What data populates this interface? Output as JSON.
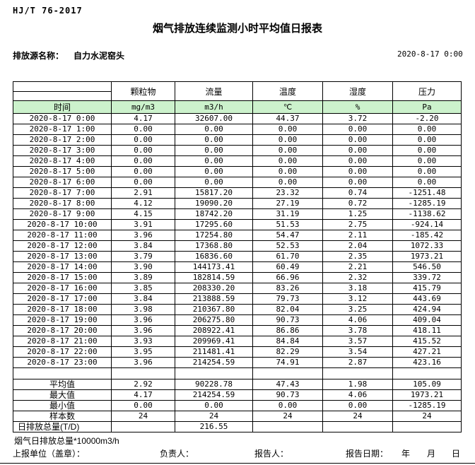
{
  "meta": {
    "standard": "HJ/T 76-2017",
    "title": "烟气排放连续监测小时平均值日报表",
    "source_label": "排放源名称：",
    "source_name": "自力水泥窑头",
    "report_datetime": "2020-8-17 0:00"
  },
  "table": {
    "time_header": "时间",
    "columns": [
      "颗粒物",
      "流量",
      "温度",
      "湿度",
      "压力"
    ],
    "units": [
      "mg/m3",
      "m3/h",
      "℃",
      "%",
      "Pa"
    ],
    "rows": [
      {
        "time": "2020-8-17 0:00",
        "values": [
          "4.17",
          "32607.00",
          "44.37",
          "3.72",
          "-2.20"
        ]
      },
      {
        "time": "2020-8-17 1:00",
        "values": [
          "0.00",
          "0.00",
          "0.00",
          "0.00",
          "0.00"
        ]
      },
      {
        "time": "2020-8-17 2:00",
        "values": [
          "0.00",
          "0.00",
          "0.00",
          "0.00",
          "0.00"
        ]
      },
      {
        "time": "2020-8-17 3:00",
        "values": [
          "0.00",
          "0.00",
          "0.00",
          "0.00",
          "0.00"
        ]
      },
      {
        "time": "2020-8-17 4:00",
        "values": [
          "0.00",
          "0.00",
          "0.00",
          "0.00",
          "0.00"
        ]
      },
      {
        "time": "2020-8-17 5:00",
        "values": [
          "0.00",
          "0.00",
          "0.00",
          "0.00",
          "0.00"
        ]
      },
      {
        "time": "2020-8-17 6:00",
        "values": [
          "0.00",
          "0.00",
          "0.00",
          "0.00",
          "0.00"
        ]
      },
      {
        "time": "2020-8-17 7:00",
        "values": [
          "2.91",
          "15817.20",
          "23.32",
          "0.74",
          "-1251.48"
        ]
      },
      {
        "time": "2020-8-17 8:00",
        "values": [
          "4.12",
          "19090.20",
          "27.19",
          "0.72",
          "-1285.19"
        ]
      },
      {
        "time": "2020-8-17 9:00",
        "values": [
          "4.15",
          "18742.20",
          "31.19",
          "1.25",
          "-1138.62"
        ]
      },
      {
        "time": "2020-8-17 10:00",
        "values": [
          "3.91",
          "17295.60",
          "51.53",
          "2.75",
          "-924.14"
        ]
      },
      {
        "time": "2020-8-17 11:00",
        "values": [
          "3.96",
          "17254.80",
          "54.47",
          "2.11",
          "-185.42"
        ]
      },
      {
        "time": "2020-8-17 12:00",
        "values": [
          "3.84",
          "17368.80",
          "52.53",
          "2.04",
          "1072.33"
        ]
      },
      {
        "time": "2020-8-17 13:00",
        "values": [
          "3.79",
          "16836.60",
          "61.70",
          "2.35",
          "1973.21"
        ]
      },
      {
        "time": "2020-8-17 14:00",
        "values": [
          "3.90",
          "144173.41",
          "60.49",
          "2.21",
          "546.50"
        ]
      },
      {
        "time": "2020-8-17 15:00",
        "values": [
          "3.89",
          "182814.59",
          "66.96",
          "2.32",
          "339.72"
        ]
      },
      {
        "time": "2020-8-17 16:00",
        "values": [
          "3.85",
          "208330.20",
          "83.26",
          "3.18",
          "415.79"
        ]
      },
      {
        "time": "2020-8-17 17:00",
        "values": [
          "3.84",
          "213888.59",
          "79.73",
          "3.12",
          "443.69"
        ]
      },
      {
        "time": "2020-8-17 18:00",
        "values": [
          "3.98",
          "210367.80",
          "82.04",
          "3.25",
          "424.94"
        ]
      },
      {
        "time": "2020-8-17 19:00",
        "values": [
          "3.96",
          "206275.80",
          "90.73",
          "4.06",
          "409.04"
        ]
      },
      {
        "time": "2020-8-17 20:00",
        "values": [
          "3.96",
          "208922.41",
          "86.86",
          "3.78",
          "418.11"
        ]
      },
      {
        "time": "2020-8-17 21:00",
        "values": [
          "3.93",
          "209969.41",
          "84.84",
          "3.57",
          "415.52"
        ]
      },
      {
        "time": "2020-8-17 22:00",
        "values": [
          "3.95",
          "211481.41",
          "82.29",
          "3.54",
          "427.21"
        ]
      },
      {
        "time": "2020-8-17 23:00",
        "values": [
          "3.96",
          "214254.59",
          "74.91",
          "2.87",
          "423.16"
        ]
      }
    ],
    "summary": [
      {
        "label": "平均值",
        "values": [
          "2.92",
          "90228.78",
          "47.43",
          "1.98",
          "105.09"
        ]
      },
      {
        "label": "最大值",
        "values": [
          "4.17",
          "214254.59",
          "90.73",
          "4.06",
          "1973.21"
        ]
      },
      {
        "label": "最小值",
        "values": [
          "0.00",
          "0.00",
          "0.00",
          "0.00",
          "-1285.19"
        ]
      },
      {
        "label": "样本数",
        "values": [
          "24",
          "24",
          "24",
          "24",
          "24"
        ]
      },
      {
        "label": "日排放总量(T/D)",
        "values": [
          "",
          "216.55",
          "",
          "",
          ""
        ],
        "align": "left"
      }
    ]
  },
  "footer": {
    "note": "烟气日排放总量*10000m3/h",
    "report_unit_label": "上报单位（盖章）：",
    "responsible_label": "负责人：",
    "reporter_label": "报告人：",
    "report_date_label": "报告日期：",
    "year_label": "年",
    "month_label": "月",
    "day_label": "日"
  },
  "colors": {
    "units_row_green": "#ccf2cc",
    "border": "#000000",
    "background": "#ffffff"
  }
}
